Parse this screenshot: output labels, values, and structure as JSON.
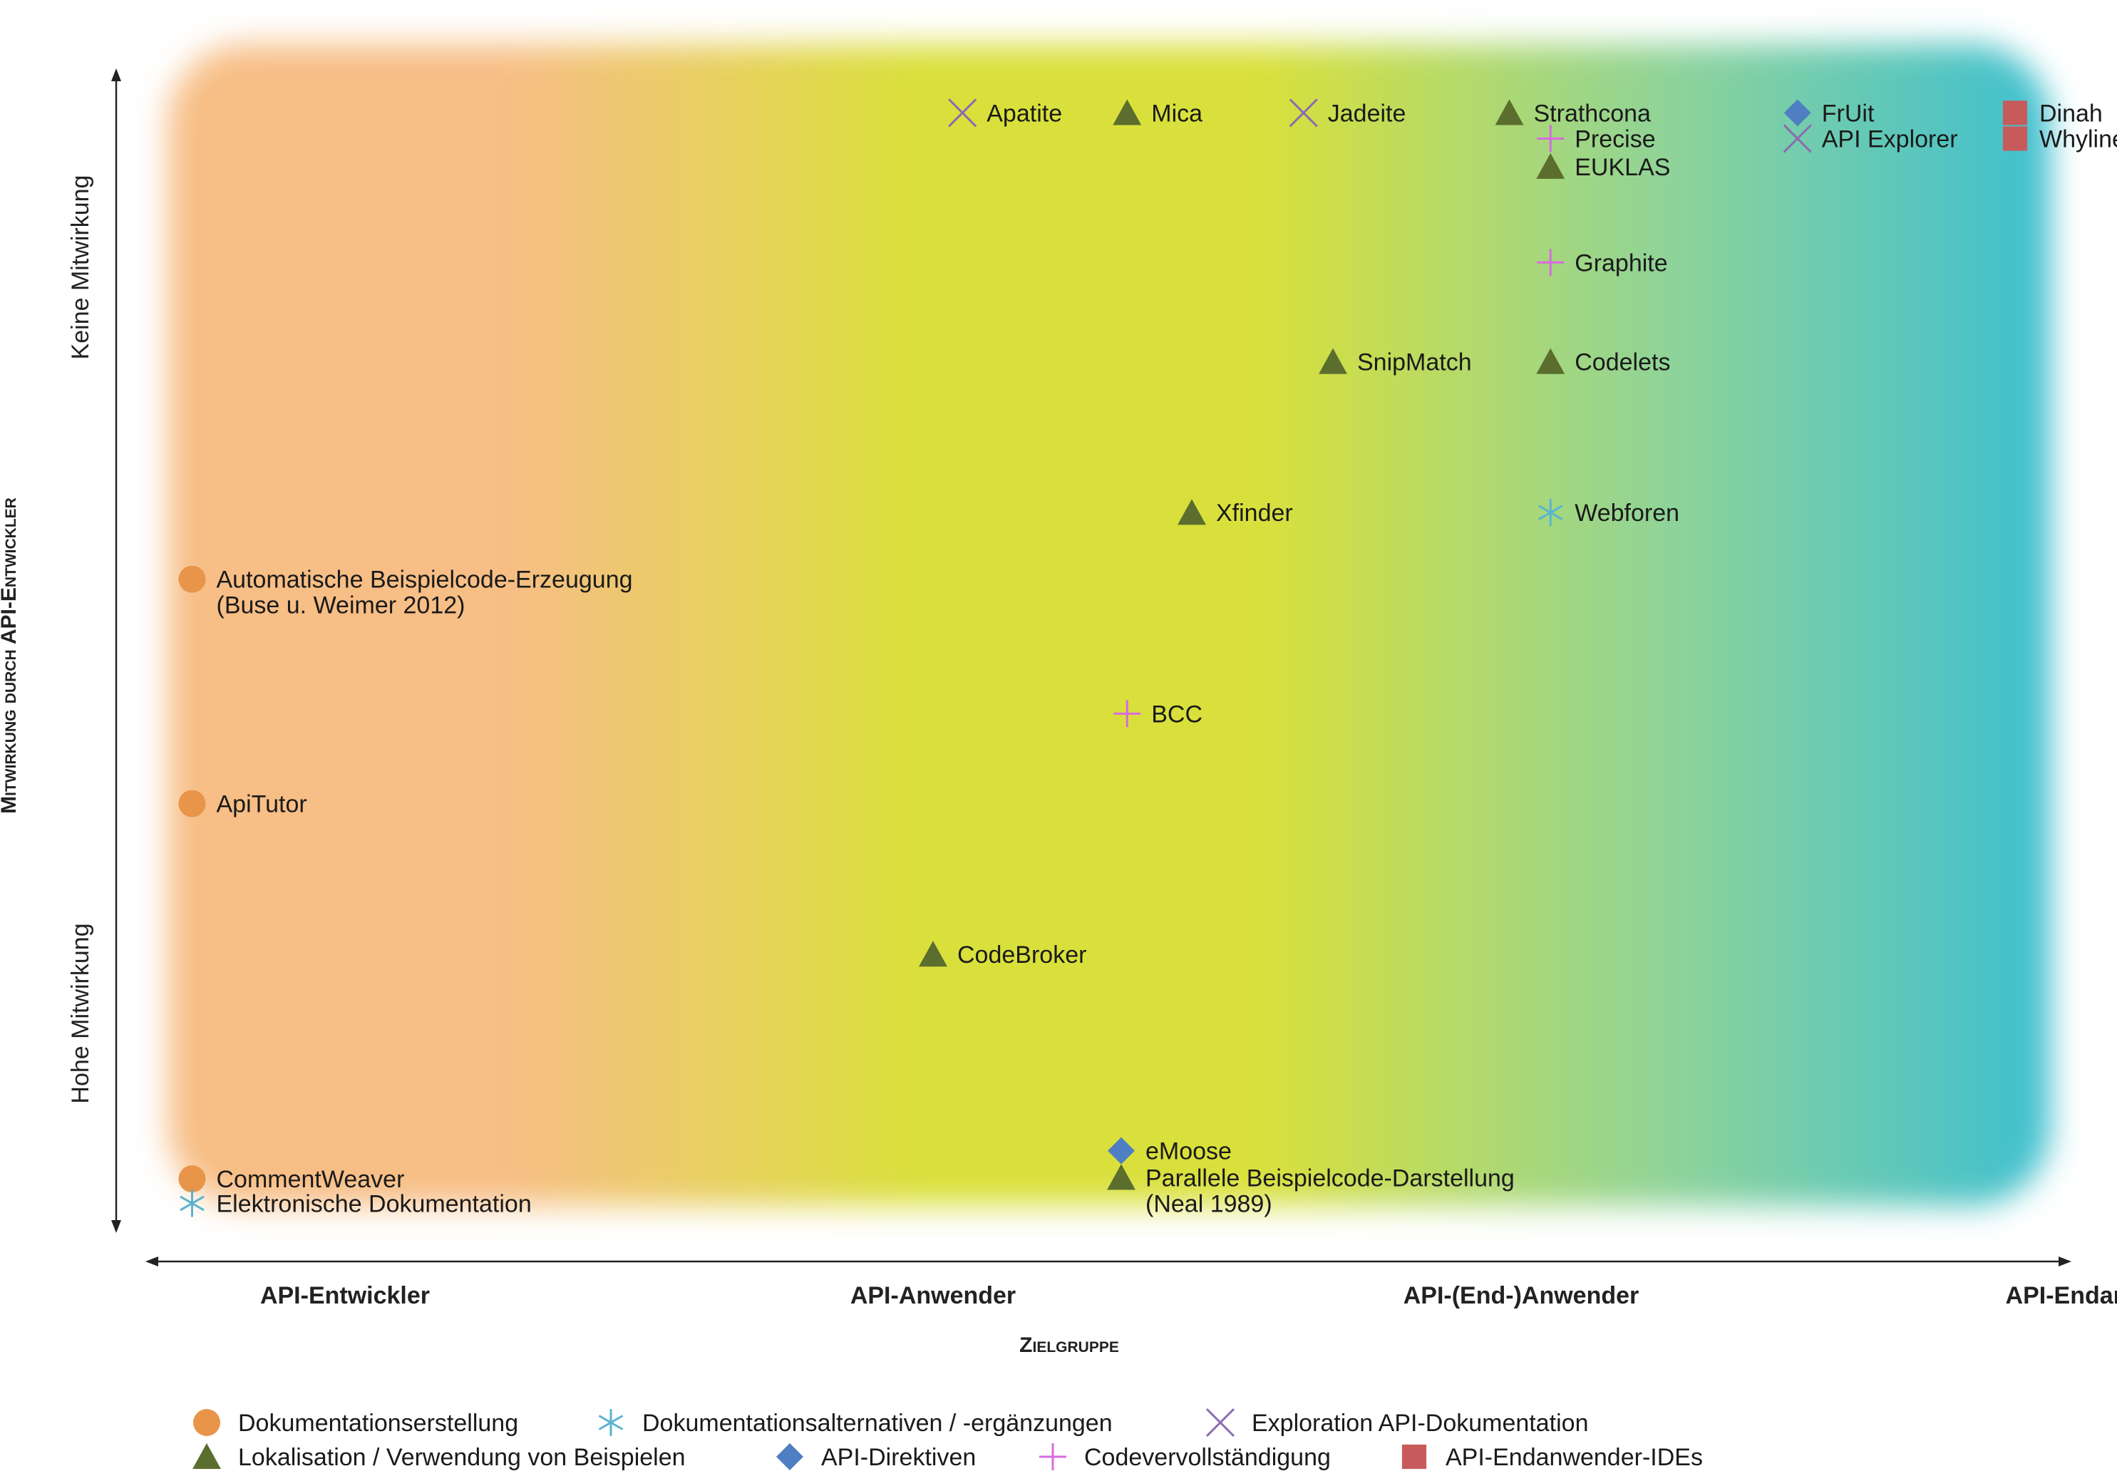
{
  "chart_data": {
    "type": "scatter",
    "xlabel": "Zielgruppe",
    "ylabel": "Mitwirkung durch API-Entwickler",
    "y_top_label": "Keine Mitwirkung",
    "y_bottom_label": "Hohe Mitwirkung",
    "categories": [
      "API-Entwickler",
      "API-Anwender",
      "API-(End-)Anwender",
      "API-Endanwender"
    ],
    "background_gradient": [
      "#F7BE85",
      "#D9E03A",
      "#8ED39A",
      "#3DBFD0"
    ],
    "series": [
      {
        "name": "Dokumentationserstellung",
        "marker": "circle",
        "color": "#E8954A"
      },
      {
        "name": "Dokumentationsalternativen / -ergänzungen",
        "marker": "asterisk",
        "color": "#5BB3CF"
      },
      {
        "name": "Exploration API-Dokumentation",
        "marker": "x",
        "color": "#8B6BB0"
      },
      {
        "name": "Lokalisation / Verwendung von Beispielen",
        "marker": "triangle",
        "color": "#5B6E2E"
      },
      {
        "name": "API-Direktiven",
        "marker": "diamond",
        "color": "#4F7FC2"
      },
      {
        "name": "Codevervollständigung",
        "marker": "plus",
        "color": "#D86BE0"
      },
      {
        "name": "API-Endanwender-IDEs",
        "marker": "square",
        "color": "#C75B5B"
      }
    ],
    "points": [
      {
        "label": [
          "Apatite"
        ],
        "series": 2,
        "x": 1.05,
        "y": 0.951
      },
      {
        "label": [
          "Mica"
        ],
        "series": 3,
        "x": 1.33,
        "y": 0.951
      },
      {
        "label": [
          "Jadeite"
        ],
        "series": 2,
        "x": 1.63,
        "y": 0.951
      },
      {
        "label": [
          "Strathcona"
        ],
        "series": 3,
        "x": 1.98,
        "y": 0.951
      },
      {
        "label": [
          "Precise"
        ],
        "series": 5,
        "x": 2.05,
        "y": 0.929
      },
      {
        "label": [
          "EUKLAS"
        ],
        "series": 3,
        "x": 2.05,
        "y": 0.905
      },
      {
        "label": [
          "FrUit"
        ],
        "series": 4,
        "x": 2.47,
        "y": 0.951
      },
      {
        "label": [
          "API Explorer"
        ],
        "series": 2,
        "x": 2.47,
        "y": 0.929
      },
      {
        "label": [
          "Dinah"
        ],
        "series": 6,
        "x": 2.84,
        "y": 0.951
      },
      {
        "label": [
          "Whyline"
        ],
        "series": 6,
        "x": 2.84,
        "y": 0.929
      },
      {
        "label": [
          "Graphite"
        ],
        "series": 5,
        "x": 2.05,
        "y": 0.823
      },
      {
        "label": [
          "SnipMatch"
        ],
        "series": 3,
        "x": 1.68,
        "y": 0.738
      },
      {
        "label": [
          "Codelets"
        ],
        "series": 3,
        "x": 2.05,
        "y": 0.738
      },
      {
        "label": [
          "Xfinder"
        ],
        "series": 3,
        "x": 1.44,
        "y": 0.609
      },
      {
        "label": [
          "Webforen"
        ],
        "series": 1,
        "x": 2.05,
        "y": 0.609
      },
      {
        "label": [
          "Automatische Beispielcode-Erzeugung",
          "(Buse u. Weimer 2012)"
        ],
        "series": 0,
        "x": -0.26,
        "y": 0.552
      },
      {
        "label": [
          "BCC"
        ],
        "series": 5,
        "x": 1.33,
        "y": 0.437
      },
      {
        "label": [
          "ApiTutor"
        ],
        "series": 0,
        "x": -0.26,
        "y": 0.36
      },
      {
        "label": [
          "CodeBroker"
        ],
        "series": 3,
        "x": 1.0,
        "y": 0.231
      },
      {
        "label": [
          "eMoose"
        ],
        "series": 4,
        "x": 1.32,
        "y": 0.063
      },
      {
        "label": [
          "Parallele Beispielcode-Darstellung",
          "(Neal 1989)"
        ],
        "series": 3,
        "x": 1.32,
        "y": 0.04
      },
      {
        "label": [
          "CommentWeaver"
        ],
        "series": 0,
        "x": -0.26,
        "y": 0.039
      },
      {
        "label": [
          "Elektronische Dokumentation"
        ],
        "series": 1,
        "x": -0.26,
        "y": 0.018
      }
    ]
  }
}
